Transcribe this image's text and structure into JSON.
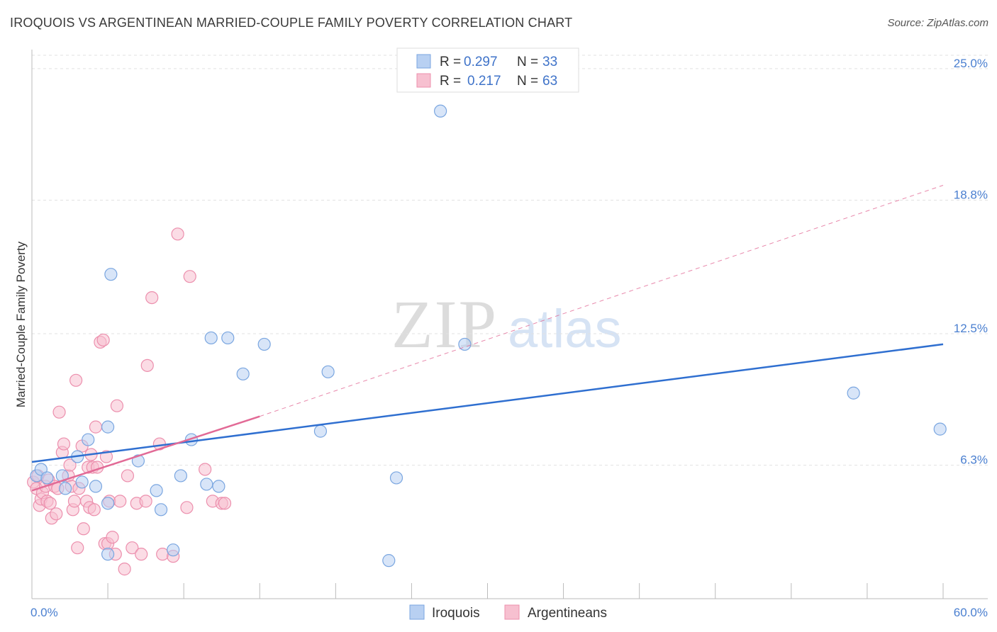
{
  "title": "IROQUOIS VS ARGENTINEAN MARRIED-COUPLE FAMILY POVERTY CORRELATION CHART",
  "source": "Source: ZipAtlas.com",
  "watermark": {
    "zip": "ZIP",
    "atlas": "atlas"
  },
  "colors": {
    "iroquois_fill": "#b8d0f2",
    "iroquois_stroke": "#7aa6e0",
    "iroquois_line": "#2f6fd0",
    "argentinean_fill": "#f7c0d0",
    "argentinean_stroke": "#ec8fad",
    "argentinean_line": "#e26a96",
    "tick_label": "#4a7fd0",
    "grid": "#e2e2e2"
  },
  "chart_data": {
    "type": "scatter",
    "title": "IROQUOIS VS ARGENTINEAN MARRIED-COUPLE FAMILY POVERTY CORRELATION CHART",
    "xlabel": "",
    "ylabel": "Married-Couple Family Poverty",
    "xlim": [
      0,
      60
    ],
    "ylim": [
      0,
      25.9
    ],
    "x_tick_labels": {
      "left": "0.0%",
      "right": "60.0%"
    },
    "y_ticks": [
      {
        "value": 6.3,
        "label": "6.3%"
      },
      {
        "value": 12.5,
        "label": "12.5%"
      },
      {
        "value": 18.8,
        "label": "18.8%"
      },
      {
        "value": 25.0,
        "label": "25.0%"
      }
    ],
    "legend": [
      {
        "series": "Iroquois",
        "r_label": "R =",
        "r_value": "0.297",
        "n_label": "N =",
        "n_value": "33"
      },
      {
        "series": "Argentineans",
        "r_label": "R =",
        "r_value": "0.217",
        "n_label": "N =",
        "n_value": "63"
      }
    ],
    "series": [
      {
        "name": "Iroquois",
        "points": [
          [
            0.3,
            5.8
          ],
          [
            0.6,
            6.1
          ],
          [
            1.0,
            5.7
          ],
          [
            2.0,
            5.8
          ],
          [
            2.2,
            5.2
          ],
          [
            3.0,
            6.7
          ],
          [
            3.3,
            5.5
          ],
          [
            3.7,
            7.5
          ],
          [
            4.2,
            5.3
          ],
          [
            5.0,
            4.5
          ],
          [
            5.0,
            2.1
          ],
          [
            5.2,
            15.3
          ],
          [
            5.0,
            8.1
          ],
          [
            7.0,
            6.5
          ],
          [
            8.2,
            5.1
          ],
          [
            8.5,
            4.2
          ],
          [
            9.3,
            2.3
          ],
          [
            9.8,
            5.8
          ],
          [
            10.5,
            7.5
          ],
          [
            11.5,
            5.4
          ],
          [
            12.3,
            5.3
          ],
          [
            11.8,
            12.3
          ],
          [
            12.9,
            12.3
          ],
          [
            13.9,
            10.6
          ],
          [
            15.3,
            12.0
          ],
          [
            19.0,
            7.9
          ],
          [
            19.5,
            10.7
          ],
          [
            23.5,
            1.8
          ],
          [
            24.0,
            5.7
          ],
          [
            26.9,
            23.0
          ],
          [
            28.5,
            12.0
          ],
          [
            54.1,
            9.7
          ],
          [
            59.8,
            8.0
          ]
        ],
        "trend": {
          "x0": 0,
          "y0": 6.45,
          "x1": 60,
          "y1": 12.0,
          "style": "solid"
        }
      },
      {
        "name": "Argentineans",
        "points": [
          [
            0.1,
            5.5
          ],
          [
            0.3,
            5.2
          ],
          [
            0.4,
            5.8
          ],
          [
            0.5,
            4.4
          ],
          [
            0.6,
            4.7
          ],
          [
            0.7,
            5.0
          ],
          [
            0.9,
            5.3
          ],
          [
            1.0,
            4.6
          ],
          [
            1.1,
            5.6
          ],
          [
            1.2,
            4.5
          ],
          [
            1.3,
            3.8
          ],
          [
            1.5,
            5.3
          ],
          [
            1.6,
            4.0
          ],
          [
            1.7,
            5.2
          ],
          [
            1.8,
            8.8
          ],
          [
            2.0,
            6.9
          ],
          [
            2.1,
            7.3
          ],
          [
            2.4,
            5.8
          ],
          [
            2.5,
            6.3
          ],
          [
            2.6,
            5.3
          ],
          [
            2.7,
            4.2
          ],
          [
            2.8,
            4.6
          ],
          [
            2.9,
            10.3
          ],
          [
            3.0,
            2.4
          ],
          [
            3.1,
            5.2
          ],
          [
            3.3,
            7.2
          ],
          [
            3.4,
            3.3
          ],
          [
            3.6,
            4.6
          ],
          [
            3.7,
            6.2
          ],
          [
            3.8,
            4.3
          ],
          [
            3.9,
            6.8
          ],
          [
            4.0,
            6.2
          ],
          [
            4.1,
            4.2
          ],
          [
            4.2,
            8.1
          ],
          [
            4.3,
            6.2
          ],
          [
            4.5,
            12.1
          ],
          [
            4.7,
            12.2
          ],
          [
            4.8,
            2.6
          ],
          [
            4.9,
            6.7
          ],
          [
            5.0,
            2.6
          ],
          [
            5.1,
            4.6
          ],
          [
            5.3,
            2.9
          ],
          [
            5.5,
            2.1
          ],
          [
            5.6,
            9.1
          ],
          [
            5.8,
            4.6
          ],
          [
            6.1,
            1.4
          ],
          [
            6.3,
            5.8
          ],
          [
            6.6,
            2.4
          ],
          [
            6.9,
            4.5
          ],
          [
            7.2,
            2.1
          ],
          [
            7.5,
            4.6
          ],
          [
            7.6,
            11.0
          ],
          [
            7.9,
            14.2
          ],
          [
            8.4,
            7.3
          ],
          [
            8.6,
            2.1
          ],
          [
            9.3,
            2.0
          ],
          [
            9.6,
            17.2
          ],
          [
            10.4,
            15.2
          ],
          [
            10.2,
            4.3
          ],
          [
            11.4,
            6.1
          ],
          [
            11.9,
            4.6
          ],
          [
            12.5,
            4.5
          ],
          [
            12.7,
            4.5
          ]
        ],
        "trend": {
          "x0": 0,
          "y0": 5.1,
          "x1": 15,
          "y1": 8.6,
          "style": "solid",
          "extension": {
            "x0": 15,
            "y0": 8.6,
            "x1": 60,
            "y1": 19.5,
            "style": "dashed"
          }
        }
      }
    ]
  }
}
